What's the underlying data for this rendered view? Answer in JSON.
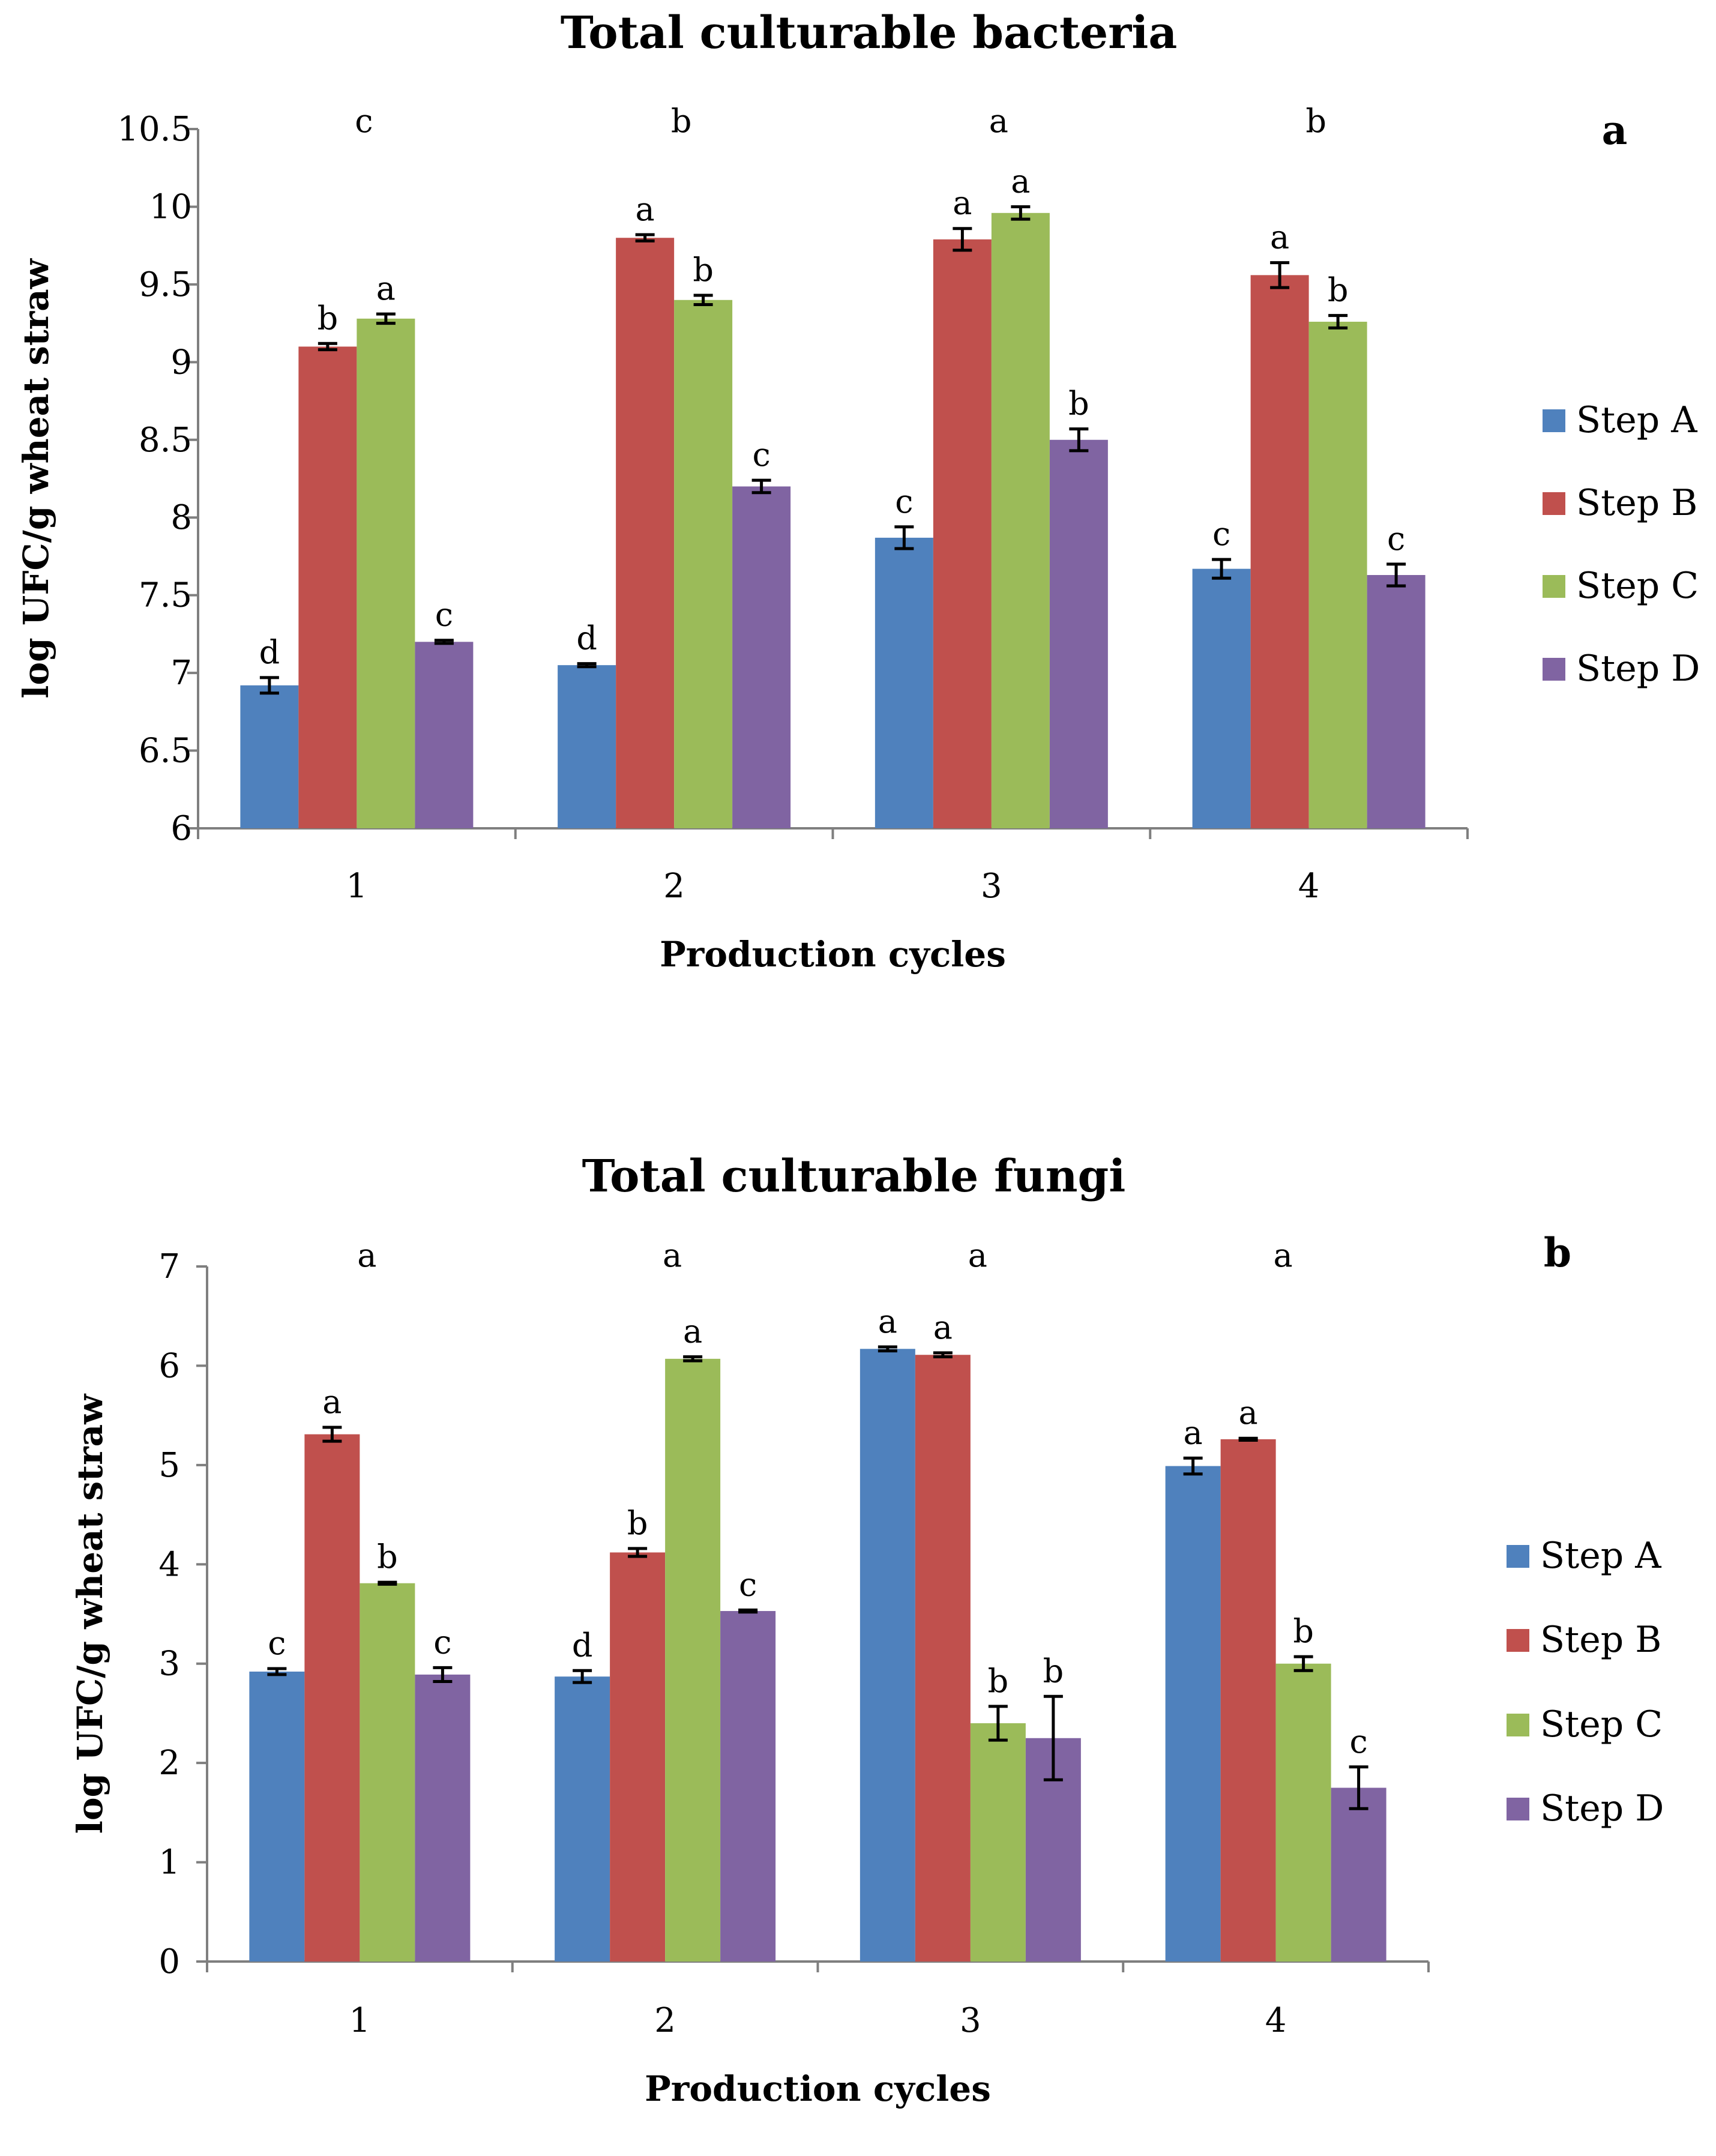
{
  "chart_data": [
    {
      "type": "bar",
      "panel_letter": "a",
      "title": "Total culturable bacteria",
      "xlabel": "Production cycles",
      "ylabel": "log UFC/g wheat straw",
      "ylim": [
        6,
        10.5
      ],
      "yticks": [
        "6",
        "6.5",
        "7",
        "7.5",
        "8",
        "8.5",
        "9",
        "9.5",
        "10",
        "10.5"
      ],
      "categories": [
        "1",
        "2",
        "3",
        "4"
      ],
      "category_letters": [
        "c",
        "b",
        "a",
        "b"
      ],
      "legend_position": "right",
      "series": [
        {
          "name": "Step A",
          "color": "#4F81BD",
          "values": [
            6.92,
            7.05,
            7.87,
            7.67
          ],
          "errors": [
            0.05,
            0.01,
            0.07,
            0.06
          ],
          "letters": [
            "d",
            "d",
            "c",
            "c"
          ]
        },
        {
          "name": "Step B",
          "color": "#C0504D",
          "values": [
            9.1,
            9.8,
            9.79,
            9.56
          ],
          "errors": [
            0.02,
            0.02,
            0.07,
            0.08
          ],
          "letters": [
            "b",
            "a",
            "a",
            "a"
          ]
        },
        {
          "name": "Step C",
          "color": "#9BBB59",
          "values": [
            9.28,
            9.4,
            9.96,
            9.26
          ],
          "errors": [
            0.03,
            0.03,
            0.04,
            0.04
          ],
          "letters": [
            "a",
            "b",
            "a",
            "b"
          ]
        },
        {
          "name": "Step D",
          "color": "#8064A2",
          "values": [
            7.2,
            8.2,
            8.5,
            7.63
          ],
          "errors": [
            0.01,
            0.04,
            0.07,
            0.07
          ],
          "letters": [
            "c",
            "c",
            "b",
            "c"
          ]
        }
      ]
    },
    {
      "type": "bar",
      "panel_letter": "b",
      "title": "Total culturable fungi",
      "xlabel": "Production cycles",
      "ylabel": "log UFC/g wheat straw",
      "ylim": [
        0,
        7
      ],
      "yticks": [
        "0",
        "1",
        "2",
        "3",
        "4",
        "5",
        "6",
        "7"
      ],
      "categories": [
        "1",
        "2",
        "3",
        "4"
      ],
      "category_letters": [
        "a",
        "a",
        "a",
        "a"
      ],
      "legend_position": "right",
      "series": [
        {
          "name": "Step A",
          "color": "#4F81BD",
          "values": [
            2.92,
            2.87,
            6.17,
            4.99
          ],
          "errors": [
            0.03,
            0.06,
            0.02,
            0.08
          ],
          "letters": [
            "c",
            "d",
            "a",
            "a"
          ]
        },
        {
          "name": "Step B",
          "color": "#C0504D",
          "values": [
            5.31,
            4.12,
            6.11,
            5.26
          ],
          "errors": [
            0.07,
            0.04,
            0.02,
            0.01
          ],
          "letters": [
            "a",
            "b",
            "a",
            "a"
          ]
        },
        {
          "name": "Step C",
          "color": "#9BBB59",
          "values": [
            3.81,
            6.07,
            2.4,
            3.0
          ],
          "errors": [
            0.01,
            0.02,
            0.17,
            0.07
          ],
          "letters": [
            "b",
            "a",
            "b",
            "b"
          ]
        },
        {
          "name": "Step D",
          "color": "#8064A2",
          "values": [
            2.89,
            3.53,
            2.25,
            1.75
          ],
          "errors": [
            0.07,
            0.01,
            0.42,
            0.21
          ],
          "letters": [
            "c",
            "c",
            "b",
            "c"
          ]
        }
      ]
    }
  ]
}
